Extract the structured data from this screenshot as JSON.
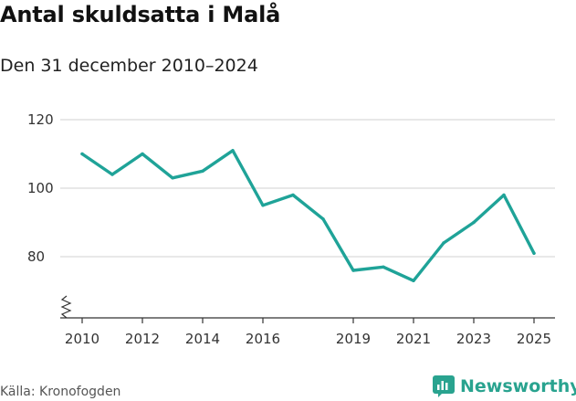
{
  "header": {
    "title": "Antal skuldsatta i Malå",
    "subtitle": "Den 31 december 2010–2024"
  },
  "footer": {
    "source": "Källa: Kronofogden",
    "brand_name": "Newsworthy",
    "brand_icon": "newsworthy-chart-icon",
    "brand_color": "#29a38f"
  },
  "chart_data": {
    "type": "line",
    "title": "Antal skuldsatta i Malå",
    "subtitle": "Den 31 december 2010–2024",
    "xlabel": "",
    "ylabel": "",
    "ylim": [
      65,
      124
    ],
    "xlim": [
      2009.8,
      2025.3
    ],
    "y_ticks": [
      80,
      100,
      120
    ],
    "y_tick_labels": [
      "80",
      "100",
      "120"
    ],
    "x_ticks": [
      2010,
      2012,
      2014,
      2016,
      2019,
      2021,
      2023,
      2025
    ],
    "x_tick_labels": [
      "2010",
      "2012",
      "2014",
      "2016",
      "2019",
      "2021",
      "2023",
      "2025"
    ],
    "axis_break": true,
    "grid": true,
    "line_color": "#1fa398",
    "series": [
      {
        "x": [
          2010,
          2011,
          2012,
          2013,
          2014,
          2015,
          2016,
          2017,
          2018,
          2019,
          2020,
          2021,
          2022,
          2023,
          2024,
          2025
        ],
        "values": [
          110,
          104,
          110,
          103,
          105,
          111,
          95,
          98,
          91,
          76,
          77,
          73,
          84,
          90,
          98,
          81
        ]
      }
    ]
  }
}
